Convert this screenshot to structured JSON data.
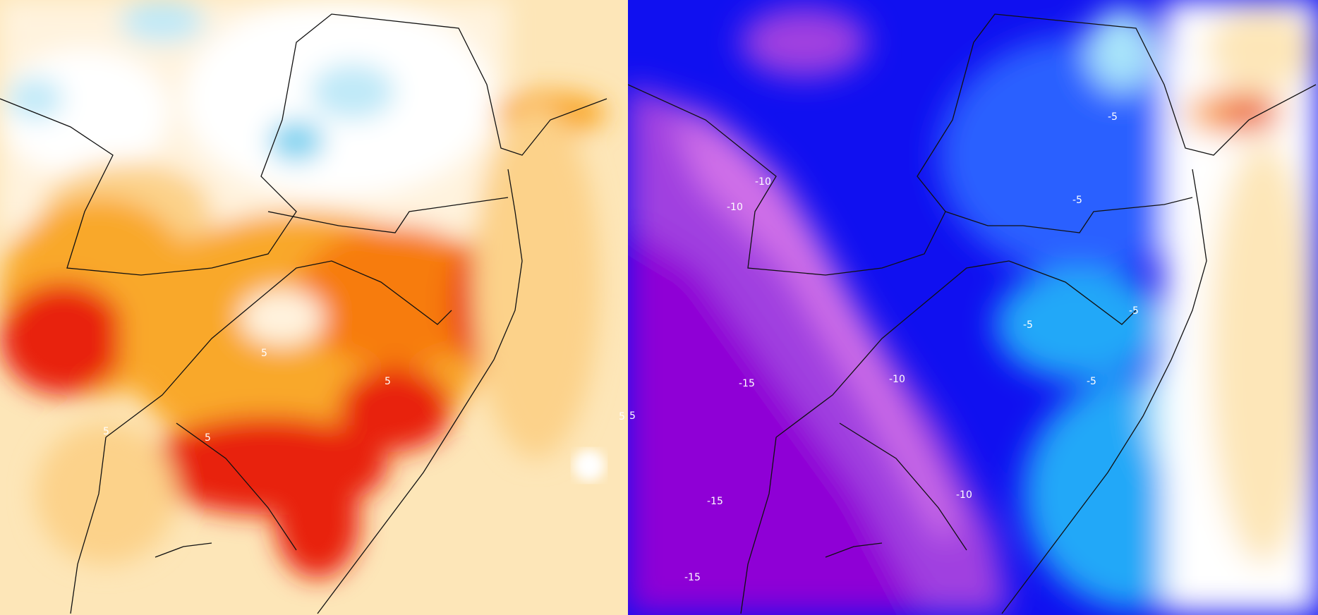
{
  "panels": [
    {
      "name": "warm-anomaly-map",
      "colors": {
        "base": "#fde6b8",
        "light": "#fcd28a",
        "mid": "#f9a82a",
        "strong": "#f77b0a",
        "max": "#e8220a",
        "cool": "#bfe9f8",
        "cold": "#7fd3f0"
      },
      "contour_labels": [
        "5",
        "5",
        "5",
        "5",
        "5"
      ]
    },
    {
      "name": "cold-anomaly-map",
      "colors": {
        "deep": "#8f00d6",
        "violet": "#a040e0",
        "pink": "#d070e8",
        "blue": "#1010f0",
        "mid_blue": "#2a60ff",
        "sky": "#20a8f8",
        "light": "#a8e4fa",
        "warm": "#f9a030",
        "hot": "#e83010"
      },
      "contour_labels": [
        "-10",
        "-10",
        "-5",
        "-5",
        "-5",
        "-5",
        "-5",
        "-15",
        "-10",
        "-15",
        "-10",
        "-15",
        "5"
      ]
    }
  ]
}
